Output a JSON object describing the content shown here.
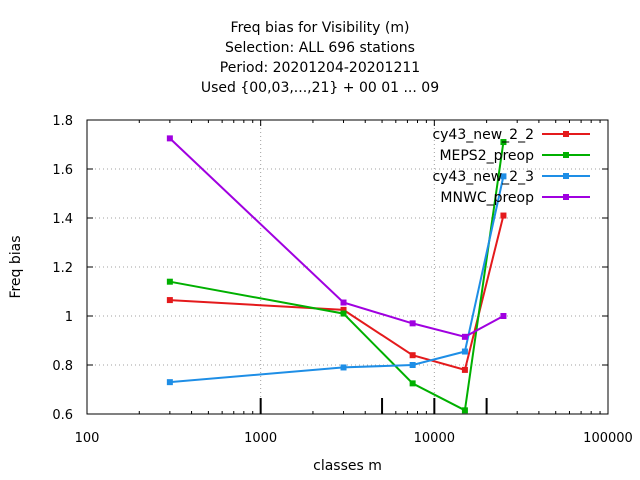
{
  "chart_data": {
    "type": "line",
    "title_lines": [
      "Freq bias  for Visibility (m)",
      "Selection: ALL    696 stations",
      "Period: 20201204-20201211",
      "Used {00,03,...,21} + 00 01 ... 09"
    ],
    "xlabel": "classes m",
    "ylabel": "Freq bias",
    "xscale": "log",
    "xlim": [
      100,
      100000
    ],
    "ylim": [
      0.6,
      1.8
    ],
    "x_ticks": [
      100,
      1000,
      10000,
      100000
    ],
    "x_tick_labels": [
      "100",
      "1000",
      "10000",
      "100000"
    ],
    "y_ticks": [
      0.6,
      0.8,
      1,
      1.2,
      1.4,
      1.6,
      1.8
    ],
    "y_tick_labels": [
      "0.6",
      "0.8",
      "1",
      "1.2",
      "1.4",
      "1.6",
      "1.8"
    ],
    "class_marks": [
      1000,
      5000,
      10000,
      20000
    ],
    "grid": true,
    "legend_position": "top-right",
    "series": [
      {
        "name": "cy43_new_2_2",
        "color": "#e41a1c",
        "x": [
          300,
          3000,
          7500,
          15000,
          25000
        ],
        "y": [
          1.065,
          1.025,
          0.84,
          0.78,
          1.41
        ]
      },
      {
        "name": "MEPS2_preop",
        "color": "#00b000",
        "x": [
          300,
          3000,
          7500,
          15000,
          25000
        ],
        "y": [
          1.14,
          1.01,
          0.725,
          0.615,
          1.71
        ]
      },
      {
        "name": "cy43_new_2_3",
        "color": "#1e8ee6",
        "x": [
          300,
          3000,
          7500,
          15000,
          25000
        ],
        "y": [
          0.73,
          0.79,
          0.8,
          0.855,
          1.57
        ]
      },
      {
        "name": "MNWC_preop",
        "color": "#a000e0",
        "x": [
          300,
          3000,
          7500,
          15000,
          25000
        ],
        "y": [
          1.725,
          1.055,
          0.97,
          0.915,
          1.0
        ]
      }
    ]
  }
}
